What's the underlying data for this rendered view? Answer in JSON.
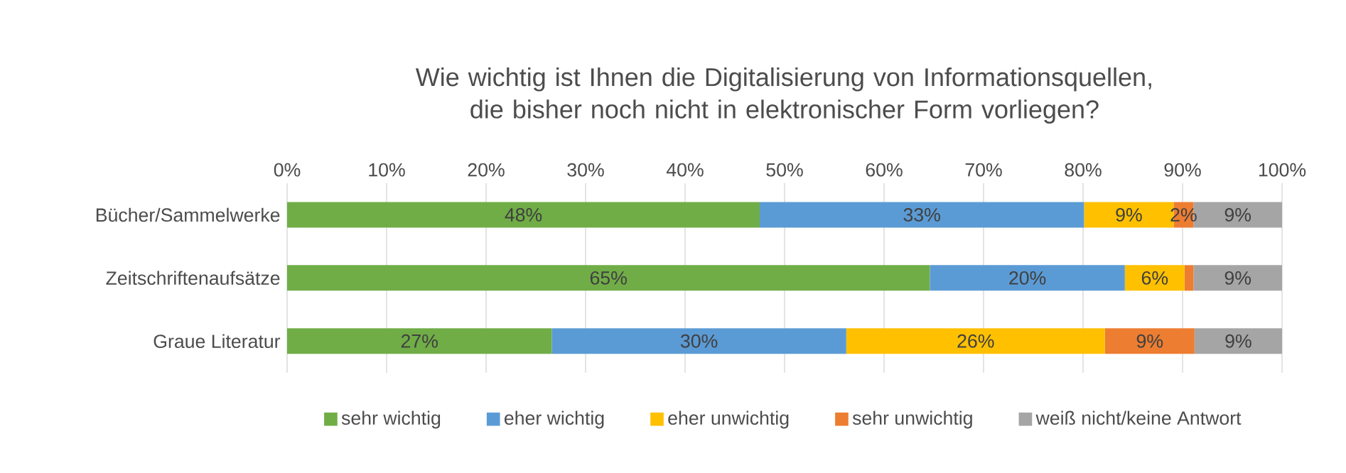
{
  "chart_data": {
    "type": "bar",
    "orientation": "horizontal",
    "stacked": true,
    "title": "Wie wichtig ist Ihnen die Digitalisierung von Informationsquellen, die bisher noch nicht in elektronischer Form vorliegen?",
    "categories": [
      "Bücher/Sammelwerke",
      "Zeitschriftenaufsätze",
      "Graue Literatur"
    ],
    "series": [
      {
        "name": "sehr wichtig",
        "color": "#70ad47",
        "values": [
          47.5,
          64.6,
          26.6
        ],
        "value_labels": [
          "48%",
          "65%",
          "27%"
        ]
      },
      {
        "name": "eher wichtig",
        "color": "#5b9bd5",
        "values": [
          32.6,
          19.6,
          29.6
        ],
        "value_labels": [
          "33%",
          "20%",
          "30%"
        ]
      },
      {
        "name": "eher unwichtig",
        "color": "#ffc000",
        "values": [
          9,
          6,
          26
        ],
        "value_labels": [
          "9%",
          "6%",
          "26%"
        ]
      },
      {
        "name": "sehr unwichtig",
        "color": "#ed7d31",
        "values": [
          2,
          0.9,
          9
        ],
        "value_labels": [
          "2%",
          null,
          "9%"
        ]
      },
      {
        "name": "weiß nicht/keine Antwort",
        "color": "#a5a5a5",
        "values": [
          8.9,
          8.9,
          8.8
        ],
        "value_labels": [
          "9%",
          "9%",
          "9%"
        ]
      }
    ],
    "xlim": [
      0,
      100
    ],
    "xticks": [
      {
        "value": 0,
        "label": "0%"
      },
      {
        "value": 10,
        "label": "10%"
      },
      {
        "value": 20,
        "label": "20%"
      },
      {
        "value": 30,
        "label": "30%"
      },
      {
        "value": 40,
        "label": "40%"
      },
      {
        "value": 50,
        "label": "50%"
      },
      {
        "value": 60,
        "label": "60%"
      },
      {
        "value": 70,
        "label": "70%"
      },
      {
        "value": 80,
        "label": "80%"
      },
      {
        "value": 90,
        "label": "90%"
      },
      {
        "value": 100,
        "label": "100%"
      }
    ],
    "grid": "x",
    "legend": "bottom"
  }
}
